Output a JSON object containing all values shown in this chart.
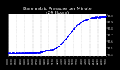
{
  "title": "Barometric Pressure per Minute\n(24 Hours)",
  "title_fontsize": 4.5,
  "title_color": "#ffffff",
  "bg_color": "#000000",
  "plot_bg_color": "#ffffff",
  "dot_color": "#0000ff",
  "grid_color": "#999999",
  "tick_color": "#ffffff",
  "y_min": 29.38,
  "y_max": 30.02,
  "y_ticks": [
    29.4,
    29.5,
    29.6,
    29.7,
    29.8,
    29.9,
    30.0
  ],
  "y_tick_labels": [
    "29.4",
    "29.5",
    "29.6",
    "29.7",
    "29.8",
    "29.9",
    "30.0"
  ],
  "n_points": 1440,
  "x_min": 0,
  "x_max": 1439,
  "n_xgrid": 12,
  "n_xticks": 24,
  "seed": 42
}
